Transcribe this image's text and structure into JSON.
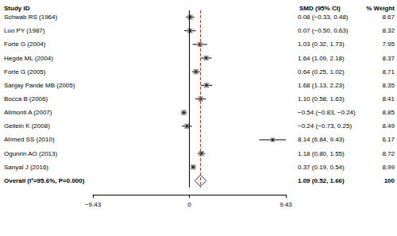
{
  "chart_data": {
    "type": "forest",
    "columns": [
      "Study ID",
      "SMD (95% CI)",
      "% Weight"
    ],
    "categories": [
      "Schwab RS (1964)",
      "Luo PY (1987)",
      "Forte G (2004)",
      "Hegde ML (2004)",
      "Forte G (2005)",
      "Sanjay Pande MB (2005)",
      "Bocca B (2006)",
      "Alimonti A (2007)",
      "Gellein K (2008)",
      "Ahmed SS (2010)",
      "Ogunrin AO (2013)",
      "Sanyal J (2016)"
    ],
    "values": [
      0.08,
      0.07,
      1.03,
      1.64,
      0.64,
      1.68,
      1.1,
      -0.54,
      -0.24,
      8.14,
      1.18,
      0.37
    ],
    "ci_low": [
      -0.33,
      -0.5,
      0.32,
      1.09,
      0.25,
      1.13,
      0.58,
      -0.83,
      -0.73,
      6.84,
      0.8,
      0.19
    ],
    "ci_high": [
      0.48,
      0.63,
      1.73,
      2.18,
      1.02,
      2.23,
      1.63,
      -0.24,
      0.25,
      9.43,
      1.55,
      0.54
    ],
    "value_labels": [
      "0.08 (−0.33, 0.48)",
      "0.07 (−0.50, 0.63)",
      "1.03 (0.32, 1.73)",
      "1.64 (1.09, 2.18)",
      "0.64 (0.25, 1.02)",
      "1.68 (1.13, 2.23)",
      "1.10 (0.58, 1.63)",
      "−0.54 (−0.83, −0.24)",
      "−0.24 (−0.73, 0.25)",
      "8.14 (6.84, 9.43)",
      "1.18 (0.80, 1.55)",
      "0.37 (0.19, 0.54)"
    ],
    "weights": [
      8.67,
      8.32,
      7.95,
      8.37,
      8.71,
      8.35,
      8.41,
      8.85,
      8.49,
      6.17,
      8.72,
      8.99
    ],
    "overall": {
      "label": "Overall (I²=95.6%, P=0.000)",
      "value": 1.09,
      "ci_low": 0.52,
      "ci_high": 1.66,
      "value_label": "1.09 (0.52, 1.66)",
      "weight": 100
    },
    "null_line": 0,
    "xlim": [
      -9.43,
      9.43
    ],
    "xticks": [
      {
        "value": -9.43,
        "label": "−9.43"
      },
      0,
      9.43
    ],
    "grid": false
  }
}
